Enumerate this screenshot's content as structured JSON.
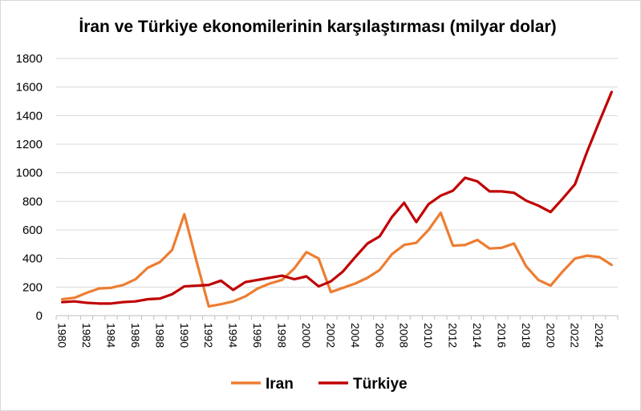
{
  "chart_data": {
    "type": "line",
    "title": "İran ve Türkiye ekonomilerinin karşılaştırması (milyar dolar)",
    "xlabel": "",
    "ylabel": "",
    "ylim": [
      0,
      1800
    ],
    "yticks": [
      "0",
      "200",
      "400",
      "600",
      "800",
      "1000",
      "1200",
      "1400",
      "1600",
      "1800"
    ],
    "x": [
      1980,
      1981,
      1982,
      1983,
      1984,
      1985,
      1986,
      1987,
      1988,
      1989,
      1990,
      1991,
      1992,
      1993,
      1994,
      1995,
      1996,
      1997,
      1998,
      1999,
      2000,
      2001,
      2002,
      2003,
      2004,
      2005,
      2006,
      2007,
      2008,
      2009,
      2010,
      2011,
      2012,
      2013,
      2014,
      2015,
      2016,
      2017,
      2018,
      2019,
      2020,
      2021,
      2022,
      2023,
      2024,
      2025
    ],
    "xticks": [
      "1980",
      "1982",
      "1984",
      "1986",
      "1988",
      "1990",
      "1992",
      "1994",
      "1996",
      "1998",
      "2000",
      "2002",
      "2004",
      "2006",
      "2008",
      "2010",
      "2012",
      "2014",
      "2016",
      "2018",
      "2020",
      "2022",
      "2024"
    ],
    "grid": "horizontal",
    "legend_position": "bottom",
    "series": [
      {
        "name": "Iran",
        "color": "#ED7D31",
        "values": [
          115,
          125,
          160,
          190,
          195,
          215,
          255,
          335,
          375,
          460,
          710,
          380,
          65,
          80,
          100,
          135,
          190,
          225,
          250,
          330,
          445,
          400,
          165,
          195,
          225,
          265,
          320,
          430,
          495,
          510,
          600,
          720,
          490,
          495,
          530,
          470,
          475,
          505,
          345,
          250,
          210,
          310,
          400,
          420,
          410,
          355
        ]
      },
      {
        "name": "Türkiye",
        "color": "#C00000",
        "values": [
          95,
          100,
          90,
          85,
          85,
          95,
          100,
          115,
          120,
          150,
          205,
          210,
          215,
          245,
          180,
          235,
          250,
          265,
          280,
          255,
          275,
          205,
          240,
          310,
          410,
          505,
          555,
          690,
          790,
          655,
          780,
          840,
          875,
          965,
          940,
          870,
          870,
          860,
          805,
          770,
          725,
          820,
          920,
          1150,
          1360,
          1565
        ]
      }
    ]
  }
}
